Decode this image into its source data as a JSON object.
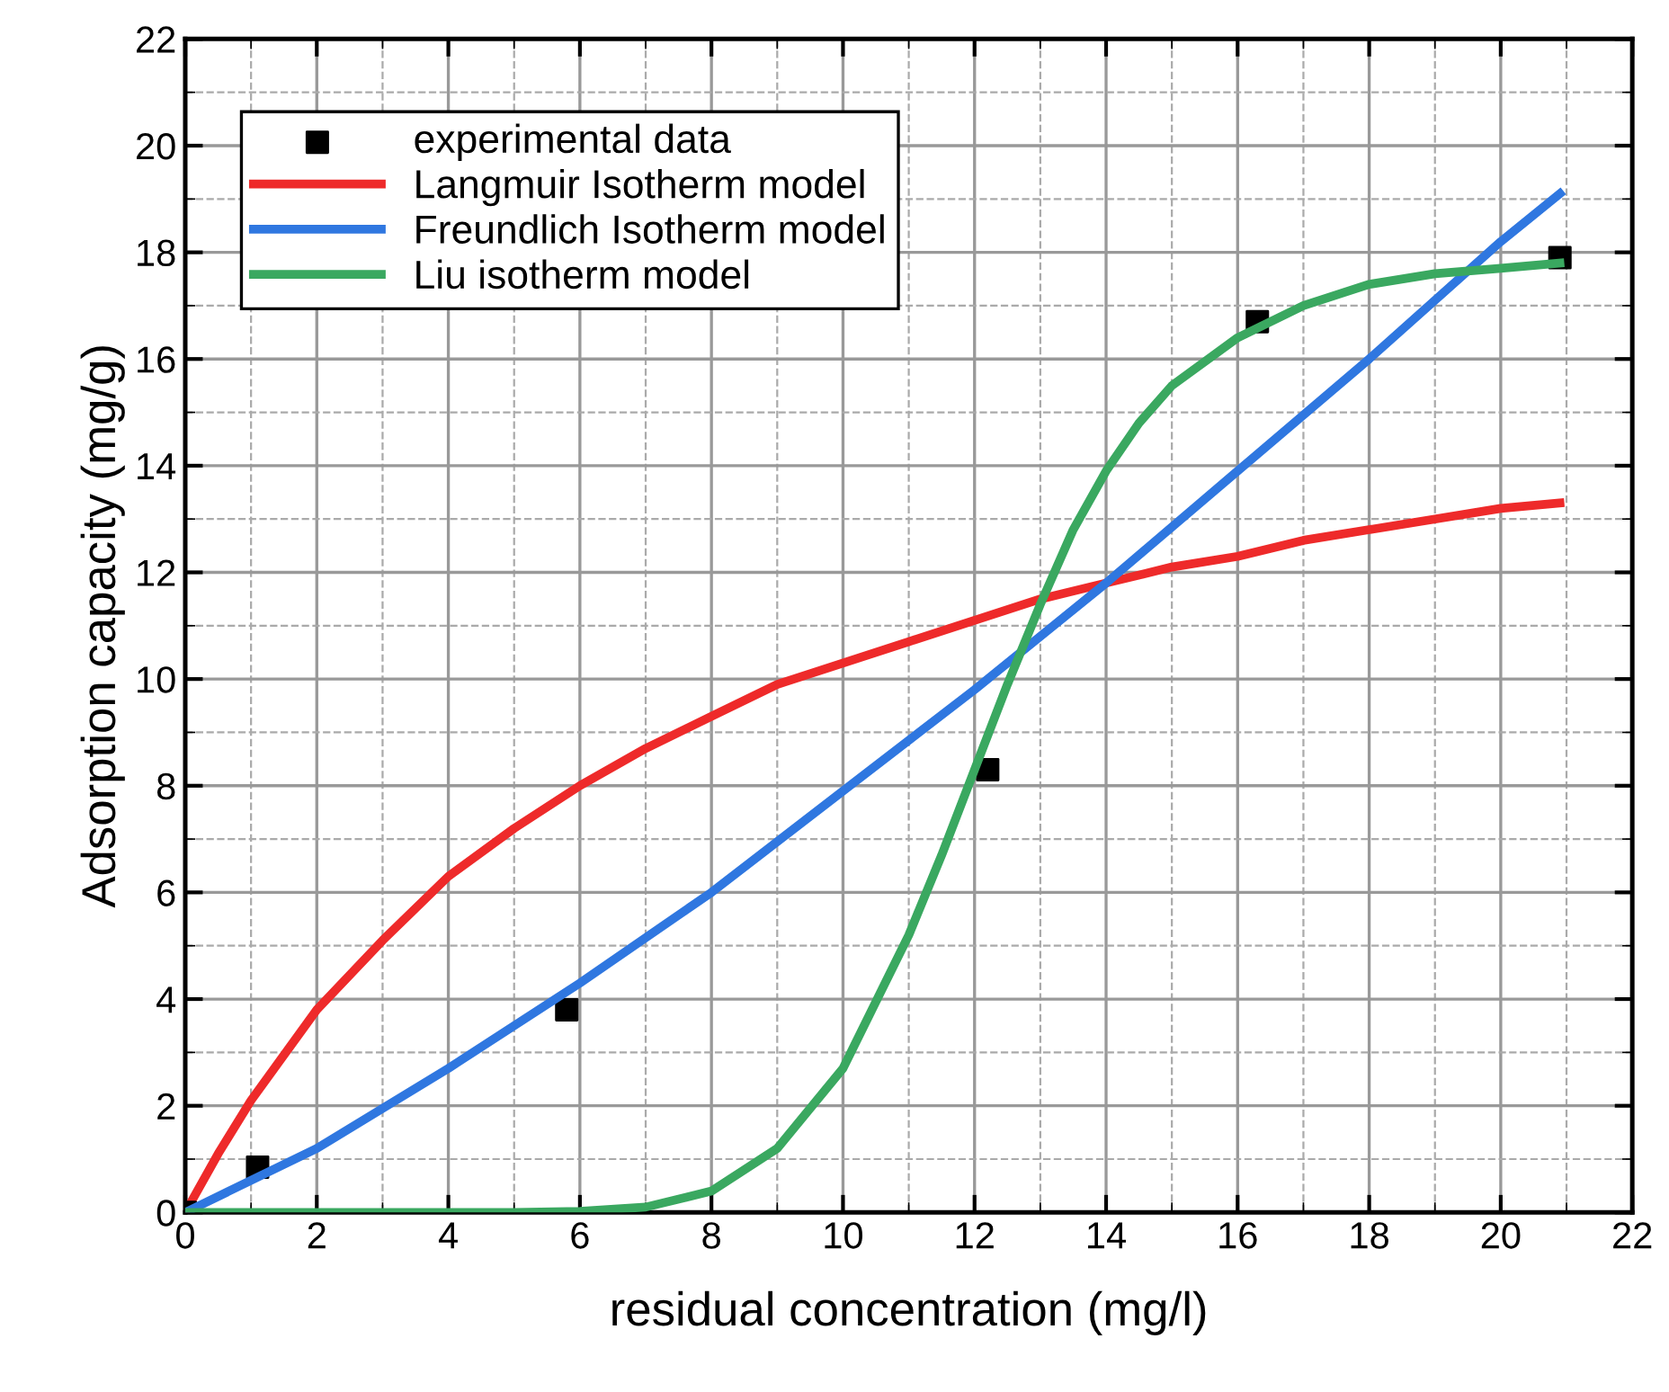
{
  "chart_data": {
    "type": "line",
    "xlabel": "residual concentration (mg/l)",
    "ylabel": "Adsorption capacity (mg/g)",
    "xlim": [
      0,
      22
    ],
    "ylim": [
      0,
      22
    ],
    "xticks": [
      0,
      2,
      4,
      6,
      8,
      10,
      12,
      14,
      16,
      18,
      20,
      22
    ],
    "yticks": [
      0,
      2,
      4,
      6,
      8,
      10,
      12,
      14,
      16,
      18,
      20,
      22
    ],
    "grid": true,
    "legend": "top left",
    "line_style": "solid",
    "series": [
      {
        "name": "experimental data",
        "type": "scatter",
        "marker": "square",
        "color": "#000000",
        "x": [
          0,
          1.1,
          5.8,
          12.2,
          16.3,
          20.9
        ],
        "values": [
          0,
          0.85,
          3.8,
          8.3,
          16.7,
          17.9
        ]
      },
      {
        "name": "Langmuir Isotherm model",
        "color": "#ee2a2a",
        "x": [
          0,
          0.5,
          1,
          2,
          3,
          4,
          5,
          6,
          7,
          8,
          9,
          10,
          11,
          12,
          13,
          14,
          15,
          16,
          17,
          18,
          19,
          20,
          20.9
        ],
        "values": [
          0,
          1.1,
          2.1,
          3.8,
          5.1,
          6.3,
          7.2,
          8.0,
          8.7,
          9.3,
          9.9,
          10.3,
          10.7,
          11.1,
          11.5,
          11.8,
          12.1,
          12.3,
          12.6,
          12.8,
          13.0,
          13.2,
          13.3
        ]
      },
      {
        "name": "Freundlich Isotherm model",
        "color": "#2f77e0",
        "x": [
          0,
          2,
          4,
          6,
          8,
          10,
          12,
          14,
          16,
          18,
          20,
          20.9
        ],
        "values": [
          0,
          1.2,
          2.7,
          4.3,
          6.0,
          7.9,
          9.8,
          11.8,
          13.9,
          16.0,
          18.2,
          19.1
        ]
      },
      {
        "name": "Liu isotherm model",
        "color": "#3aa860",
        "x": [
          0,
          5,
          6,
          7,
          8,
          9,
          10,
          11,
          11.5,
          12,
          12.5,
          13,
          13.5,
          14,
          14.5,
          15,
          16,
          17,
          18,
          19,
          20,
          20.9
        ],
        "values": [
          0,
          0,
          0.02,
          0.1,
          0.4,
          1.2,
          2.7,
          5.2,
          6.7,
          8.3,
          9.9,
          11.4,
          12.8,
          13.9,
          14.8,
          15.5,
          16.4,
          17.0,
          17.4,
          17.6,
          17.7,
          17.8
        ]
      }
    ]
  }
}
